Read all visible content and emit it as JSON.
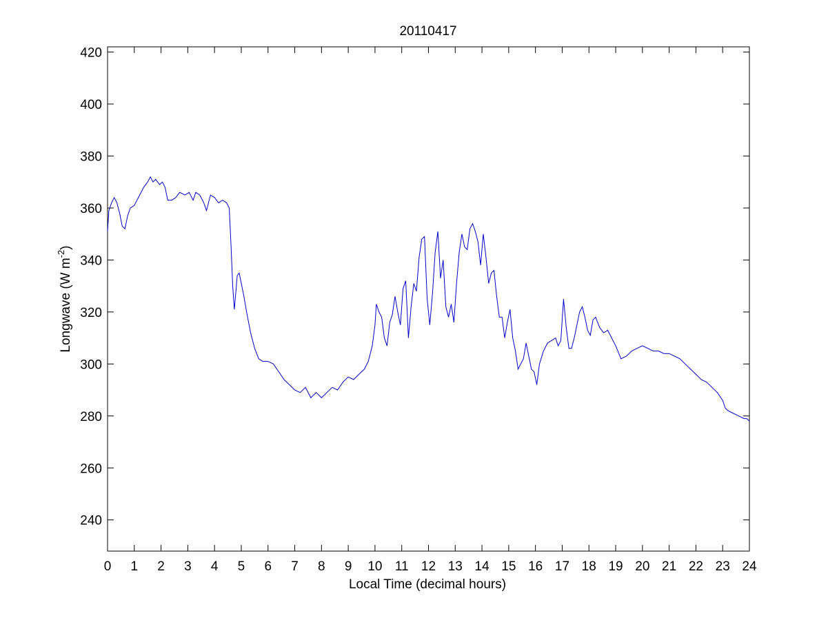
{
  "chart_data": {
    "type": "line",
    "title": "20110417",
    "xlabel": "Local Time (decimal hours)",
    "ylabel_main": "Longwave (W m",
    "ylabel_sup": "-2",
    "ylabel_close": ")",
    "xlim": [
      0,
      24
    ],
    "ylim": [
      228,
      422
    ],
    "x_ticks": [
      0,
      1,
      2,
      3,
      4,
      5,
      6,
      7,
      8,
      9,
      10,
      11,
      12,
      13,
      14,
      15,
      16,
      17,
      18,
      19,
      20,
      21,
      22,
      23,
      24
    ],
    "y_ticks": [
      240,
      260,
      280,
      300,
      320,
      340,
      360,
      380,
      400,
      420
    ],
    "grid": false,
    "line_color": "#0000cc",
    "series": [
      {
        "x": [
          0,
          0.05,
          0.15,
          0.25,
          0.35,
          0.45,
          0.55,
          0.65,
          0.75,
          0.85,
          1.0,
          1.1,
          1.2,
          1.35,
          1.5,
          1.6,
          1.7,
          1.8,
          1.95,
          2.05,
          2.15,
          2.25,
          2.4,
          2.55,
          2.7,
          2.9,
          3.05,
          3.2,
          3.3,
          3.45,
          3.6,
          3.7,
          3.85,
          4.0,
          4.15,
          4.3,
          4.45,
          4.55,
          4.62,
          4.68,
          4.74,
          4.8,
          4.85,
          4.92,
          5.0,
          5.1,
          5.2,
          5.35,
          5.5,
          5.65,
          5.8,
          6.0,
          6.2,
          6.4,
          6.6,
          6.8,
          7.0,
          7.2,
          7.4,
          7.6,
          7.8,
          8.0,
          8.2,
          8.4,
          8.6,
          8.8,
          9.0,
          9.2,
          9.4,
          9.6,
          9.75,
          9.9,
          10.0,
          10.05,
          10.15,
          10.25,
          10.35,
          10.45,
          10.55,
          10.65,
          10.75,
          10.85,
          10.95,
          11.05,
          11.15,
          11.25,
          11.35,
          11.45,
          11.55,
          11.65,
          11.75,
          11.85,
          11.95,
          12.05,
          12.15,
          12.25,
          12.35,
          12.45,
          12.55,
          12.65,
          12.75,
          12.85,
          12.95,
          13.05,
          13.15,
          13.25,
          13.35,
          13.45,
          13.55,
          13.65,
          13.75,
          13.85,
          13.95,
          14.05,
          14.15,
          14.25,
          14.35,
          14.45,
          14.55,
          14.65,
          14.75,
          14.85,
          14.95,
          15.05,
          15.15,
          15.25,
          15.35,
          15.45,
          15.55,
          15.65,
          15.75,
          15.85,
          15.95,
          16.05,
          16.15,
          16.3,
          16.45,
          16.6,
          16.75,
          16.85,
          16.95,
          17.05,
          17.15,
          17.25,
          17.35,
          17.45,
          17.55,
          17.65,
          17.75,
          17.85,
          17.95,
          18.05,
          18.15,
          18.25,
          18.4,
          18.55,
          18.7,
          18.85,
          19.0,
          19.2,
          19.4,
          19.6,
          19.8,
          20.0,
          20.2,
          20.4,
          20.6,
          20.8,
          21.0,
          21.2,
          21.4,
          21.6,
          21.8,
          22.0,
          22.2,
          22.4,
          22.6,
          22.8,
          23.0,
          23.1,
          23.2,
          23.4,
          23.6,
          23.8,
          23.9,
          24.0
        ],
        "y": [
          351,
          359,
          362,
          364,
          362,
          358,
          353,
          352,
          357,
          360,
          361,
          363,
          365,
          368,
          370,
          372,
          370,
          371,
          369,
          370,
          368,
          363,
          363,
          364,
          366,
          365,
          366,
          363,
          366,
          365,
          362,
          359,
          365,
          364,
          362,
          363,
          362,
          360,
          345,
          330,
          321,
          328,
          334,
          335,
          331,
          326,
          320,
          312,
          306,
          302,
          301,
          301,
          300,
          297,
          294,
          292,
          290,
          289,
          291,
          287,
          289,
          287,
          289,
          291,
          290,
          293,
          295,
          294,
          296,
          298,
          301,
          307,
          315,
          323,
          320,
          318,
          310,
          307,
          316,
          319,
          326,
          320,
          315,
          329,
          332,
          310,
          322,
          331,
          328,
          341,
          348,
          349,
          325,
          315,
          327,
          343,
          351,
          333,
          340,
          322,
          318,
          323,
          316,
          331,
          343,
          350,
          345,
          344,
          352,
          354,
          351,
          347,
          338,
          350,
          341,
          331,
          335,
          336,
          326,
          318,
          318,
          310,
          316,
          321,
          310,
          305,
          298,
          300,
          302,
          308,
          303,
          298,
          297,
          292,
          300,
          305,
          308,
          309,
          310,
          307,
          309,
          325,
          314,
          306,
          306,
          310,
          315,
          320,
          322,
          318,
          313,
          311,
          317,
          318,
          314,
          312,
          313,
          310,
          307,
          302,
          303,
          305,
          306,
          307,
          306,
          305,
          305,
          304,
          304,
          303,
          302,
          300,
          298,
          296,
          294,
          293,
          291,
          289,
          286,
          283,
          282,
          281,
          280,
          279,
          279,
          278
        ]
      }
    ]
  }
}
